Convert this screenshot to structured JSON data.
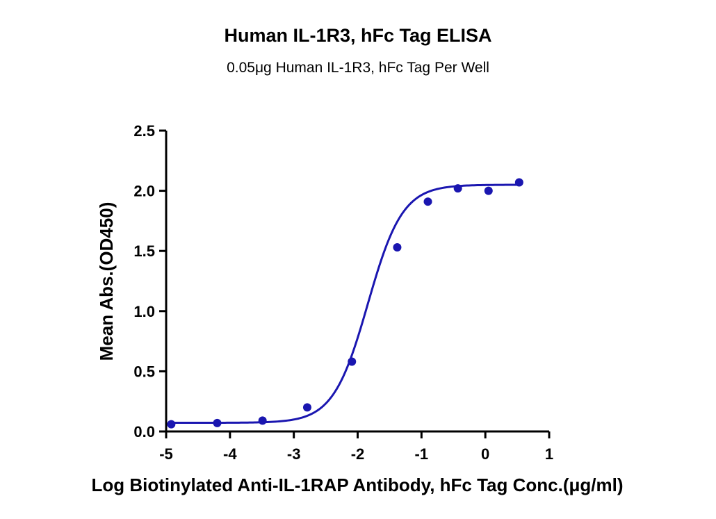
{
  "chart_data": {
    "type": "scatter",
    "title": "Human IL-1R3, hFc Tag ELISA",
    "subtitle": "0.05μg Human IL-1R3, hFc Tag Per Well",
    "xlabel": "Log Biotinylated Anti-IL-1RAP Antibody, hFc Tag Conc.(μg/ml)",
    "ylabel": "Mean Abs.(OD450)",
    "xlim": [
      -5,
      1
    ],
    "ylim": [
      0,
      2.5
    ],
    "x_ticks": [
      "-5",
      "-4",
      "-3",
      "-2",
      "-1",
      "0",
      "1"
    ],
    "y_ticks": [
      "0.0",
      "0.5",
      "1.0",
      "1.5",
      "2.0",
      "2.5"
    ],
    "grid": false,
    "series": [
      {
        "x": [
          -4.92,
          -4.2,
          -3.49,
          -2.79,
          -2.09,
          -1.38,
          -0.9,
          -0.43,
          0.05,
          0.53
        ],
        "y": [
          0.06,
          0.07,
          0.09,
          0.2,
          0.58,
          1.53,
          1.91,
          2.02,
          2.0,
          2.07
        ],
        "fit": "4PL sigmoid",
        "color": "#1a16b0"
      }
    ]
  }
}
